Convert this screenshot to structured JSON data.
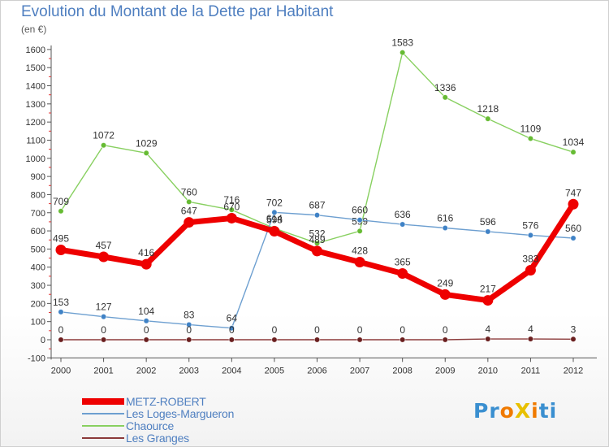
{
  "chart_data": {
    "type": "line",
    "title": "Evolution du Montant de la Dette par Habitant",
    "subtitle": "(en €)",
    "x": [
      "2000",
      "2001",
      "2002",
      "2003",
      "2004",
      "2005",
      "2006",
      "2007",
      "2008",
      "2009",
      "2010",
      "2011",
      "2012"
    ],
    "ylim": [
      -100,
      1600
    ],
    "y_ticks": [
      -100,
      0,
      100,
      200,
      300,
      400,
      500,
      600,
      700,
      800,
      900,
      1000,
      1100,
      1200,
      1300,
      1400,
      1500,
      1600
    ],
    "grid": false,
    "legend_position": "bottom-left",
    "series": [
      {
        "name": "Chaource",
        "color": "#88d060",
        "marker_color": "#66bb33",
        "values": [
          709,
          1072,
          1029,
          760,
          716,
          614,
          532,
          599,
          1583,
          1336,
          1218,
          1109,
          1034
        ],
        "labels": [
          "709",
          "1072",
          "1029",
          "760",
          "716",
          "614",
          "532",
          "599",
          "1583",
          "1336",
          "1218",
          "1109",
          "1034"
        ]
      },
      {
        "name": "Les Loges-Margueron",
        "color": "#6d9fd0",
        "marker_color": "#3f82c6",
        "values": [
          153,
          127,
          104,
          83,
          64,
          702,
          687,
          660,
          636,
          616,
          596,
          576,
          560
        ],
        "labels": [
          "153",
          "127",
          "104",
          "83",
          "64",
          "702",
          "687",
          "660",
          "636",
          "616",
          "596",
          "576",
          "560"
        ]
      },
      {
        "name": "Les Granges",
        "color": "#8b3a3a",
        "marker_color": "#6a1f1f",
        "values": [
          0,
          0,
          0,
          0,
          0,
          0,
          0,
          0,
          0,
          0,
          4,
          4,
          3
        ],
        "labels": [
          "0",
          "0",
          "0",
          "0",
          "0",
          "0",
          "0",
          "0",
          "0",
          "0",
          "4",
          "4",
          "3"
        ]
      },
      {
        "name": "METZ-ROBERT",
        "color": "#ee0000",
        "marker_color": "#ee0000",
        "values": [
          495,
          457,
          416,
          647,
          670,
          598,
          489,
          428,
          365,
          249,
          217,
          383,
          747
        ],
        "labels": [
          "495",
          "457",
          "416",
          "647",
          "670",
          "598",
          "489",
          "428",
          "365",
          "249",
          "217",
          "383",
          "747"
        ]
      }
    ]
  },
  "legend": [
    {
      "name": "METZ-ROBERT",
      "color": "#ee0000"
    },
    {
      "name": "Les Loges-Margueron",
      "color": "#6d9fd0"
    },
    {
      "name": "Chaource",
      "color": "#88d060"
    },
    {
      "name": "Les Granges",
      "color": "#8b3a3a"
    }
  ],
  "logo": {
    "text": "ProXiti"
  }
}
